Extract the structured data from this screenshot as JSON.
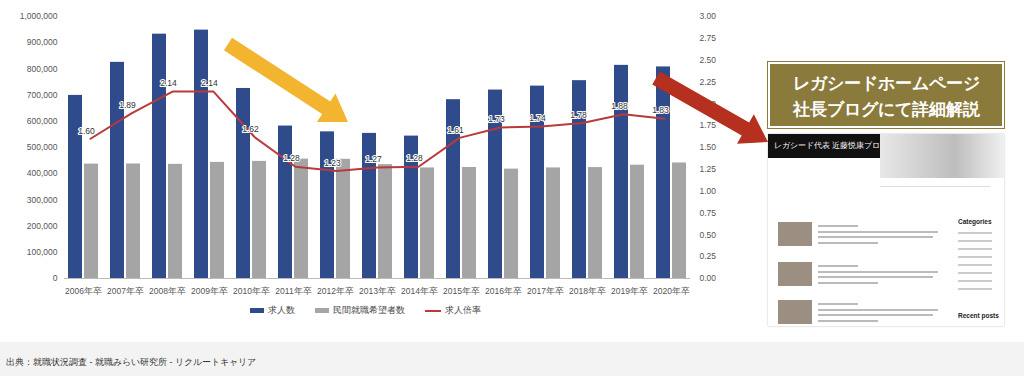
{
  "chart_data": {
    "type": "bar",
    "categories": [
      "2006年卒",
      "2007年卒",
      "2008年卒",
      "2009年卒",
      "2010年卒",
      "2011年卒",
      "2012年卒",
      "2013年卒",
      "2014年卒",
      "2015年卒",
      "2016年卒",
      "2017年卒",
      "2018年卒",
      "2019年卒",
      "2020年卒"
    ],
    "series": [
      {
        "name": "求人数",
        "type": "bar",
        "color": "#2f4b8b",
        "values": [
          698800,
          825000,
          932600,
          948000,
          725300,
          581900,
          559700,
          553800,
          543500,
          682500,
          719300,
          734300,
          755100,
          813500,
          807500
        ]
      },
      {
        "name": "民間就職希望者数",
        "type": "bar",
        "color": "#a5a5a5",
        "values": [
          436600,
          437100,
          435700,
          443100,
          447000,
          455700,
          454900,
          434500,
          422000,
          423800,
          417500,
          422000,
          423400,
          432500,
          441000
        ]
      },
      {
        "name": "求人倍率",
        "type": "line",
        "axis": "y2",
        "color": "#b83a3a",
        "data_labels": true,
        "values": [
          1.6,
          1.89,
          2.14,
          2.14,
          1.62,
          1.28,
          1.23,
          1.27,
          1.28,
          1.61,
          1.73,
          1.74,
          1.78,
          1.88,
          1.83
        ],
        "value_labels": [
          "1.60",
          "1.89",
          "2.14",
          "2.14",
          "1.62",
          "1.28",
          "1.23",
          "1.27",
          "1.28",
          "1.61",
          "1.73",
          "1.74",
          "1.78",
          "1.88",
          "1.83"
        ]
      }
    ],
    "ylim": [
      0,
      1000000
    ],
    "yticks": [
      0,
      {
        "value": 100000,
        "label": "100,000"
      },
      {
        "value": 200000,
        "label": "200,000"
      },
      {
        "value": 300000,
        "label": "300,000"
      },
      {
        "value": 400000,
        "label": "400,000"
      },
      {
        "value": 500000,
        "label": "500,000"
      },
      {
        "value": 600000,
        "label": "600,000"
      },
      {
        "value": 700000,
        "label": "700,000"
      },
      {
        "value": 800000,
        "label": "800,000"
      },
      {
        "value": 900000,
        "label": "900,000"
      },
      {
        "value": 1000000,
        "label": "1,000,000"
      }
    ],
    "y2lim": [
      0,
      3
    ],
    "y2ticks": [
      {
        "value": 0,
        "label": "0.00"
      },
      {
        "value": 0.25,
        "label": "0.25"
      },
      {
        "value": 0.5,
        "label": "0.50"
      },
      {
        "value": 0.75,
        "label": "0.75"
      },
      {
        "value": 1,
        "label": "1.00"
      },
      {
        "value": 1.25,
        "label": "1.25"
      },
      {
        "value": 1.5,
        "label": "1.50"
      },
      {
        "value": 1.75,
        "label": "1.75"
      },
      {
        "value": 2,
        "label": "2.00"
      },
      {
        "value": 2.25,
        "label": "2.25"
      },
      {
        "value": 2.5,
        "label": "2.50"
      },
      {
        "value": 2.75,
        "label": "2.75"
      },
      {
        "value": 3,
        "label": "3.00"
      }
    ],
    "grid": false,
    "legend": "bottom"
  },
  "caption": "出典：就職状況調査 - 就職みらい研究所 - リクルートキャリア",
  "panel": {
    "banner": [
      "レガシードホームページ",
      "社長ブログにて詳細解説"
    ],
    "blog_title": "レガシード代表 近藤悦康ブログ",
    "sidebar": [
      "Categories",
      "Recent posts"
    ]
  }
}
